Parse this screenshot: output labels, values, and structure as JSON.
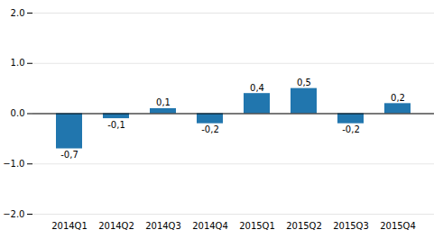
{
  "chart_data": {
    "type": "bar",
    "categories": [
      "2014Q1",
      "2014Q2",
      "2014Q3",
      "2014Q4",
      "2015Q1",
      "2015Q2",
      "2015Q3",
      "2015Q4"
    ],
    "values": [
      -0.7,
      -0.1,
      0.1,
      -0.2,
      0.4,
      0.5,
      -0.2,
      0.2
    ],
    "value_labels": [
      "-0,7",
      "-0,1",
      "0,1",
      "-0,2",
      "0,4",
      "0,5",
      "-0,2",
      "0,2"
    ],
    "data_labels": true,
    "color": "#2176ae",
    "ylim": [
      -2.0,
      2.0
    ],
    "yticks": [
      -2,
      -1,
      0,
      1,
      2
    ],
    "grid": true
  }
}
